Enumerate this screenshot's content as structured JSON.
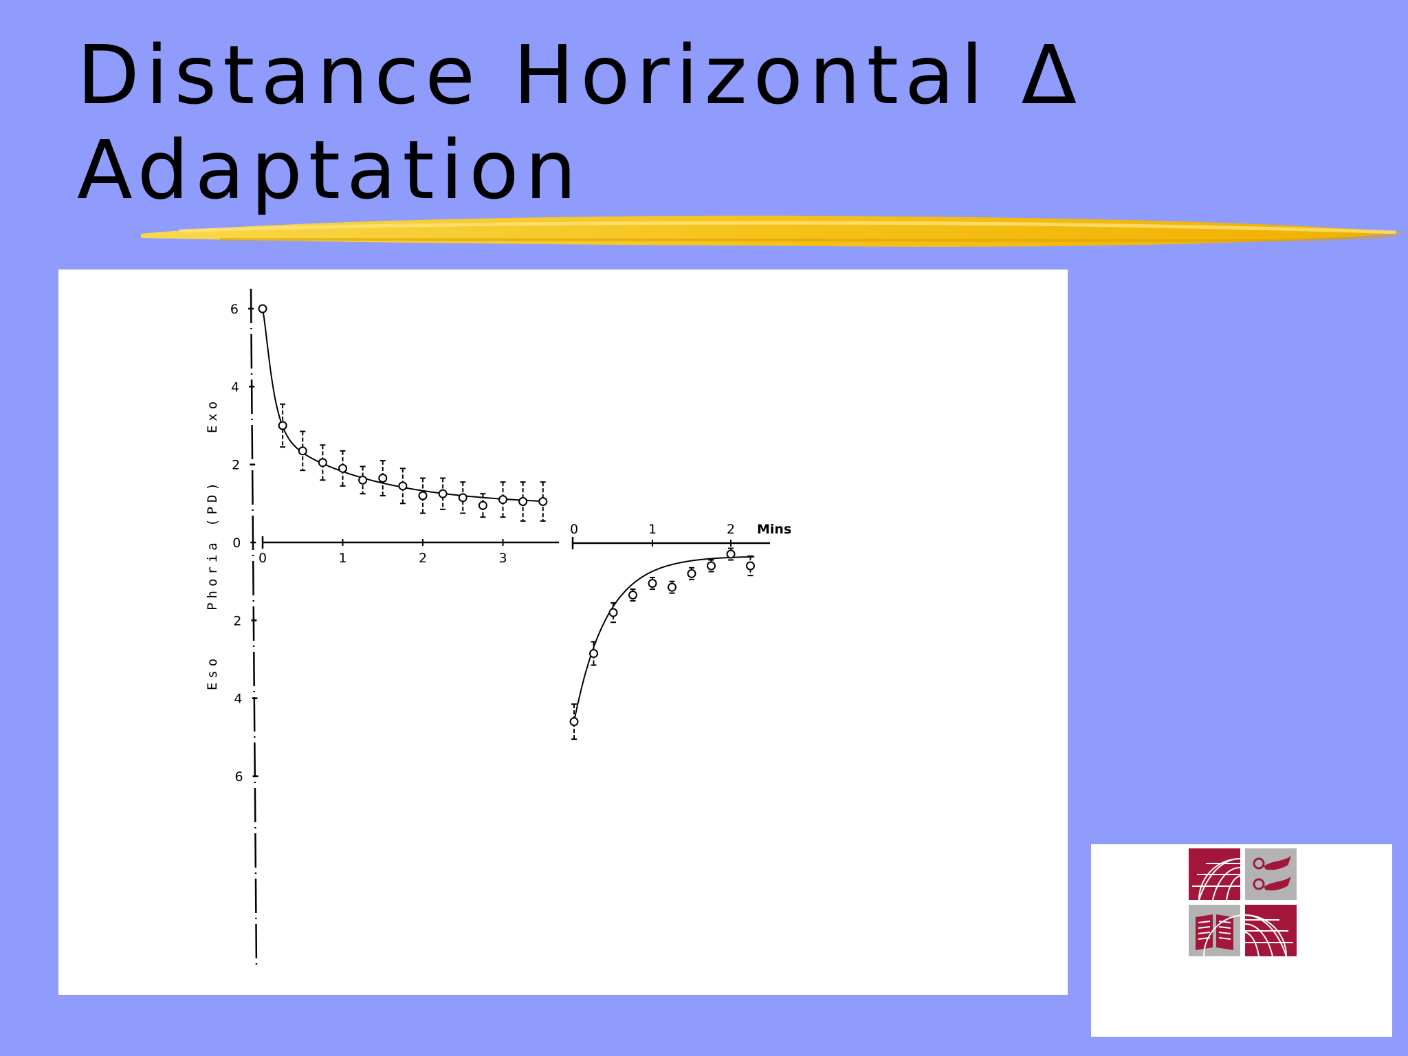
{
  "slide": {
    "title_line1": "Distance Horizontal Δ",
    "title_line2": "Adaptation"
  },
  "colors": {
    "background": "#8f9cfc",
    "highlight": "#f5c21a",
    "logo_red": "#a3163c",
    "logo_gray": "#b3b3b3"
  },
  "logo": {
    "icons": [
      "globe-icon",
      "hands-icon",
      "book-icon",
      "globe-icon"
    ]
  },
  "chart_data": {
    "type": "scatter",
    "ylabel": "Phoria (PD)",
    "y_side_labels": {
      "positive": "Exo",
      "negative": "Eso"
    },
    "xlabel_right": "Mins",
    "y_ticks": [
      "6",
      "4",
      "2",
      "0",
      "2",
      "4",
      "6"
    ],
    "ylim": [
      -6,
      6
    ],
    "panels": [
      {
        "name": "left",
        "x_ticks": [
          "0",
          "1",
          "2",
          "3"
        ],
        "xlim": [
          0,
          3.7
        ],
        "points": [
          {
            "x": 0.0,
            "y": 6.0
          },
          {
            "x": 0.25,
            "y": 3.0,
            "err": 0.55
          },
          {
            "x": 0.5,
            "y": 2.35,
            "err": 0.5
          },
          {
            "x": 0.75,
            "y": 2.05,
            "err": 0.45
          },
          {
            "x": 1.0,
            "y": 1.9,
            "err": 0.45
          },
          {
            "x": 1.25,
            "y": 1.6,
            "err": 0.35
          },
          {
            "x": 1.5,
            "y": 1.65,
            "err": 0.45
          },
          {
            "x": 1.75,
            "y": 1.45,
            "err": 0.45
          },
          {
            "x": 2.0,
            "y": 1.2,
            "err": 0.45
          },
          {
            "x": 2.25,
            "y": 1.25,
            "err": 0.4
          },
          {
            "x": 2.5,
            "y": 1.15,
            "err": 0.4
          },
          {
            "x": 2.75,
            "y": 0.95,
            "err": 0.3
          },
          {
            "x": 3.0,
            "y": 1.1,
            "err": 0.45
          },
          {
            "x": 3.25,
            "y": 1.05,
            "err": 0.5
          },
          {
            "x": 3.5,
            "y": 1.05,
            "err": 0.5
          }
        ]
      },
      {
        "name": "right",
        "x_ticks": [
          "0",
          "1",
          "2"
        ],
        "xlim": [
          0,
          2.3
        ],
        "points": [
          {
            "x": 0.0,
            "y": -4.6,
            "err": 0.45
          },
          {
            "x": 0.25,
            "y": -2.85,
            "err": 0.3
          },
          {
            "x": 0.5,
            "y": -1.8,
            "err": 0.25
          },
          {
            "x": 0.75,
            "y": -1.35,
            "err": 0.15
          },
          {
            "x": 1.0,
            "y": -1.05,
            "err": 0.15
          },
          {
            "x": 1.25,
            "y": -1.15,
            "err": 0.15
          },
          {
            "x": 1.5,
            "y": -0.8,
            "err": 0.15
          },
          {
            "x": 1.75,
            "y": -0.6,
            "err": 0.15
          },
          {
            "x": 2.0,
            "y": -0.3,
            "err": 0.15
          },
          {
            "x": 2.25,
            "y": -0.6,
            "err": 0.25
          }
        ]
      }
    ]
  }
}
